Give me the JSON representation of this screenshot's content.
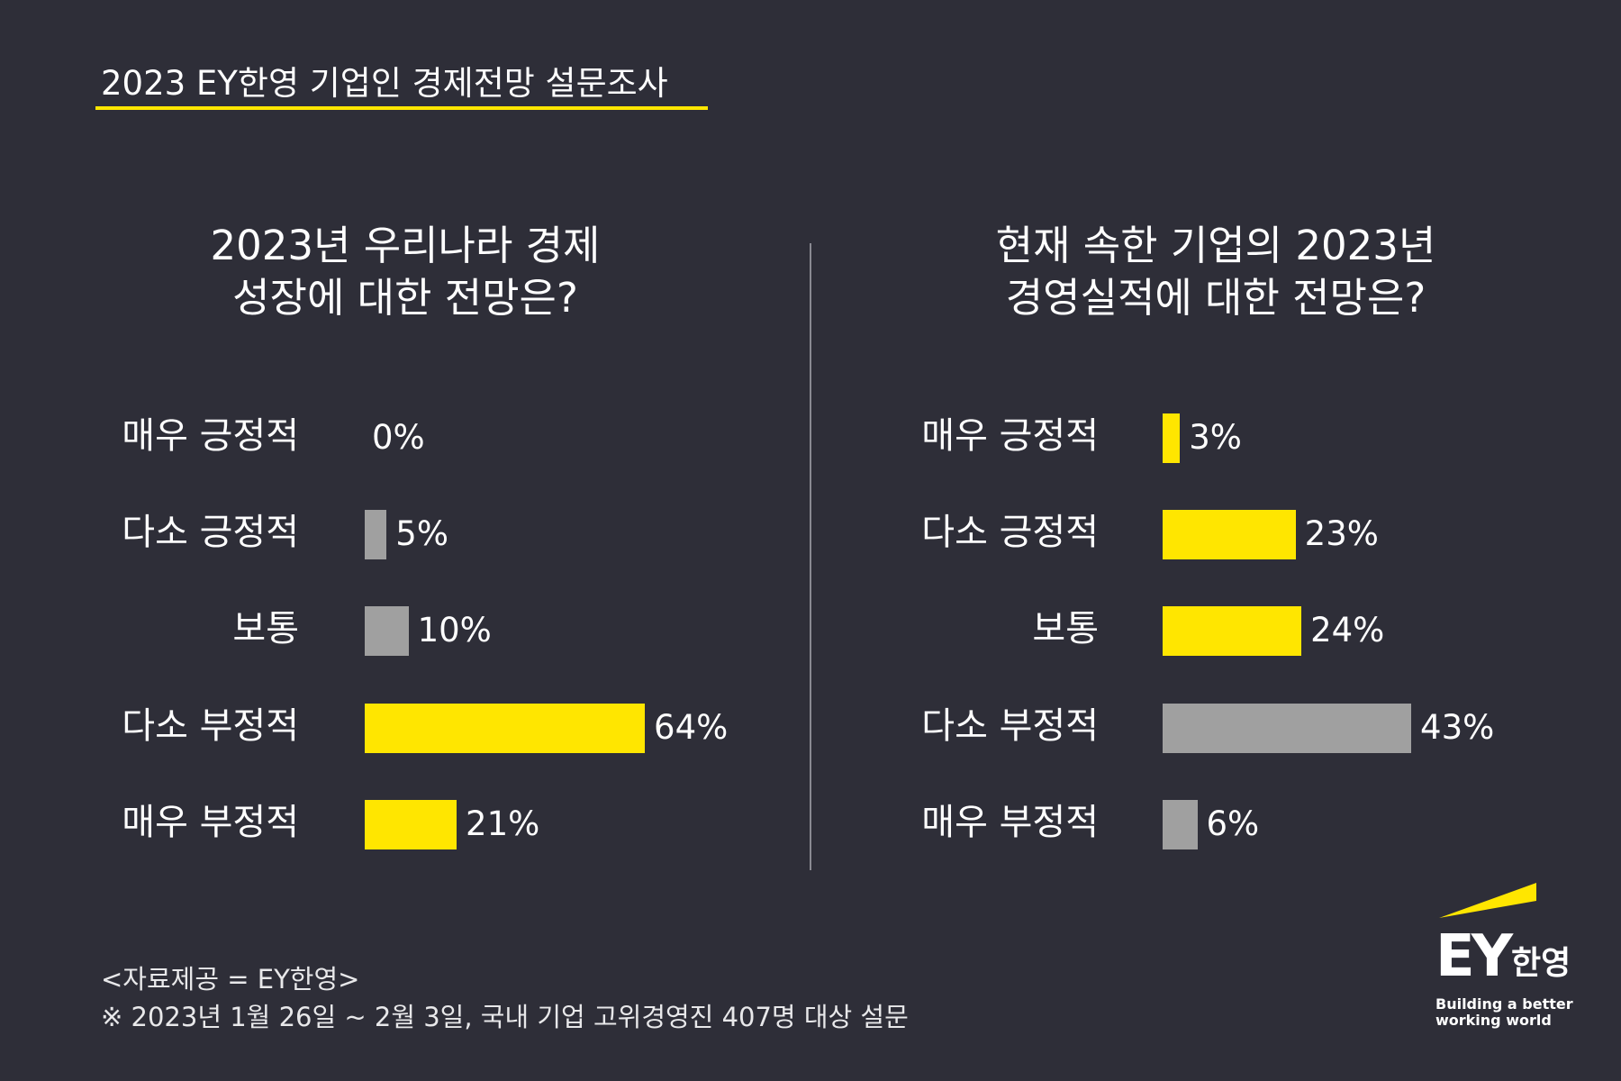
{
  "header": {
    "title": "2023 EY한영 기업인 경제전망 설문조사"
  },
  "colors": {
    "background": "#2e2e38",
    "highlight": "#ffe600",
    "neutral": "#a0a0a0"
  },
  "chart_data": [
    {
      "type": "bar",
      "orientation": "horizontal",
      "title": [
        "2023년 우리나라 경제",
        "성장에 대한 전망은?"
      ],
      "categories": [
        "매우 긍정적",
        "다소 긍정적",
        "보통",
        "다소 부정적",
        "매우 부정적"
      ],
      "values": [
        0,
        5,
        10,
        64,
        21
      ],
      "labels": [
        "0%",
        "5%",
        "10%",
        "64%",
        "21%"
      ],
      "bar_colors": [
        "#a0a0a0",
        "#a0a0a0",
        "#a0a0a0",
        "#ffe600",
        "#ffe600"
      ]
    },
    {
      "type": "bar",
      "orientation": "horizontal",
      "title": [
        "현재 속한 기업의 2023년",
        "경영실적에 대한 전망은?"
      ],
      "categories": [
        "매우 긍정적",
        "다소 긍정적",
        "보통",
        "다소 부정적",
        "매우 부정적"
      ],
      "values": [
        3,
        23,
        24,
        43,
        6
      ],
      "labels": [
        "3%",
        "23%",
        "24%",
        "43%",
        "6%"
      ],
      "bar_colors": [
        "#ffe600",
        "#ffe600",
        "#ffe600",
        "#a0a0a0",
        "#a0a0a0"
      ]
    }
  ],
  "footer": {
    "source": "<자료제공 = EY한영>",
    "note": "※ 2023년 1월 26일 ~ 2월 3일, 국내 기업 고위경영진 407명 대상 설문"
  },
  "logo": {
    "brand": "EY",
    "korean": "한영",
    "tagline_line1": "Building a better",
    "tagline_line2": "working world"
  }
}
